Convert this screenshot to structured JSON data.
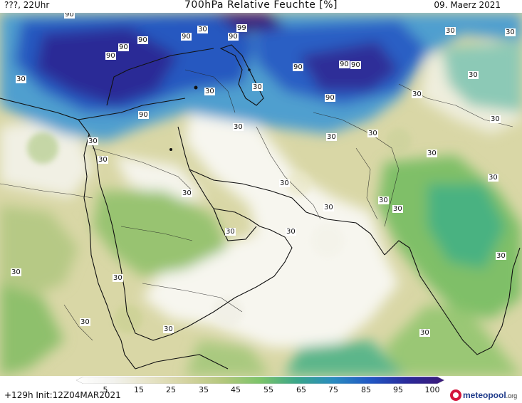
{
  "header": {
    "left": "???, 22Uhr",
    "center": "700hPa Relative Feuchte [%]",
    "right": "09. Maerz 2021"
  },
  "footer": {
    "run_info": "+129h Init:12Z04MAR2021",
    "logo_text": "meteopool",
    "logo_suffix": ".org"
  },
  "colorbar": {
    "ticks": [
      "5",
      "15",
      "25",
      "35",
      "45",
      "55",
      "65",
      "75",
      "85",
      "95",
      "100"
    ],
    "colors": [
      "#ffffff",
      "#f2f2ee",
      "#e6e3c6",
      "#d4d3a0",
      "#b3c77c",
      "#7cc46a",
      "#3aa68a",
      "#2a8bc0",
      "#2157c4",
      "#2b2a9a",
      "#3c1a7a"
    ]
  },
  "contours": {
    "l1": "90",
    "l2": "90",
    "l3": "90",
    "l4": "90",
    "l5": "90",
    "l6": "99",
    "l7": "90",
    "l8": "90",
    "l9": "90",
    "l10": "90",
    "l11": "90",
    "l12": "90",
    "l13": "30",
    "l14": "30",
    "l15": "30",
    "l16": "30",
    "l17": "30",
    "l18": "30",
    "l19": "30",
    "l20": "30",
    "l21": "30",
    "l22": "30",
    "l23": "30",
    "l24": "30",
    "l25": "30",
    "l26": "30",
    "l27": "30",
    "l28": "30",
    "l29": "30",
    "l30": "30",
    "l31": "30",
    "l32": "30",
    "l33": "30",
    "l34": "30",
    "l35": "30",
    "l36": "30",
    "l37": "30",
    "l38": "30",
    "l39": "30",
    "l40": "30",
    "l41": "30"
  }
}
